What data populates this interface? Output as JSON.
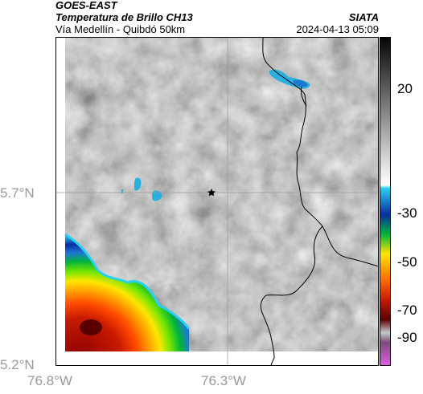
{
  "header": {
    "satellite": "GOES-EAST",
    "product": "Temperatura de Brillo CH13",
    "region": "Vía Medellín - Quibdó 50km",
    "source": "SIATA",
    "datetime": "2024-04-13 05:09"
  },
  "map": {
    "lat_labels": [
      "5.7°N",
      "5.2°N"
    ],
    "lon_labels": [
      "76.8°W",
      "76.3°W"
    ],
    "marker_icon": "star-icon"
  },
  "colorbar": {
    "ticks": [
      "20",
      "-30",
      "-50",
      "-70",
      "-90"
    ]
  },
  "colors": {
    "frame": "#000000",
    "gridline": "#9a9a9a",
    "axis_label": "#9a9a9a"
  }
}
